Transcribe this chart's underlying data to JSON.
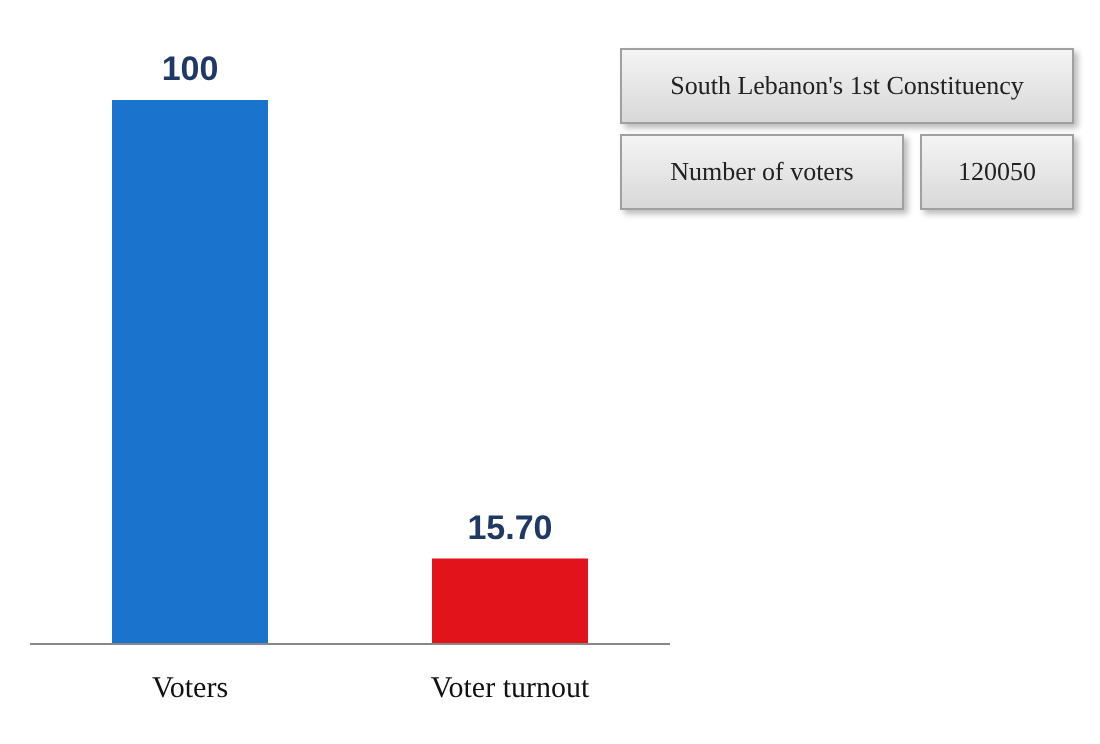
{
  "chart_data": {
    "type": "bar",
    "categories": [
      "Voters",
      "Voter turnout"
    ],
    "values": [
      100,
      15.7
    ],
    "colors": [
      "#1a73cc",
      "#e3131b"
    ],
    "value_labels": [
      "100",
      "15.70"
    ],
    "annotations": [
      "South Lebanon's 1st Constituency",
      "Number of voters",
      "120050"
    ],
    "grid": false,
    "legend": false
  }
}
